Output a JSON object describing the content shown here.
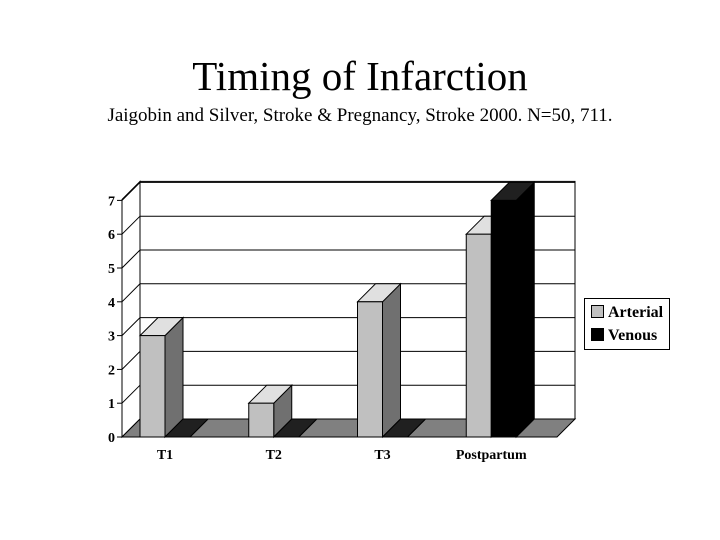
{
  "title": "Timing of Infarction",
  "subtitle": "Jaigobin and Silver, Stroke & Pregnancy, Stroke 2000.  N=50, 711.",
  "chart_data": {
    "type": "bar",
    "style": "3d-clustered",
    "categories": [
      "T1",
      "T2",
      "T3",
      "Postpartum"
    ],
    "series": [
      {
        "name": "Arterial",
        "values": [
          3,
          1,
          4,
          6
        ],
        "color": "#c0c0c0"
      },
      {
        "name": "Venous",
        "values": [
          0,
          0,
          0,
          7
        ],
        "color": "#000000"
      }
    ],
    "y_ticks": [
      "0",
      "1",
      "2",
      "3",
      "4",
      "5",
      "6",
      "7"
    ],
    "ylim": [
      0,
      7
    ],
    "grid": true,
    "legend_position": "right"
  }
}
